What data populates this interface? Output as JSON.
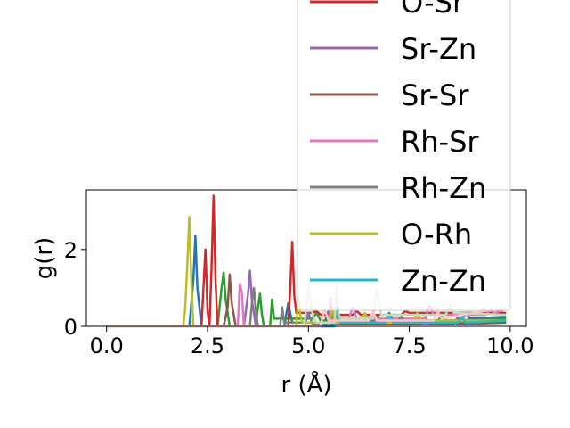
{
  "chart_data": {
    "type": "line",
    "xlabel": "r (Å)",
    "ylabel": "g(r)",
    "xlim": [
      -0.5,
      10.4
    ],
    "ylim": [
      0,
      3.55
    ],
    "xticks": [
      0.0,
      2.5,
      5.0,
      7.5,
      10.0
    ],
    "xtick_labels": [
      "0.0",
      "2.5",
      "5.0",
      "7.5",
      "10.0"
    ],
    "yticks": [
      0,
      2
    ],
    "ytick_labels": [
      "0",
      "2"
    ],
    "grid": false,
    "legend_position": "upper right, extending above the axes",
    "series": [
      {
        "color": "#1f77b4",
        "x": [
          0,
          2.05,
          2.15,
          2.2,
          2.25,
          2.35,
          4.4,
          4.5,
          4.6,
          5.4,
          5.5,
          5.6,
          6.9,
          7.0,
          7.1,
          8.8,
          8.9,
          9.0,
          9.9
        ],
        "values": [
          0,
          0,
          1.2,
          2.35,
          1.0,
          0,
          0,
          0.6,
          0.1,
          0.1,
          0.4,
          0.1,
          0.1,
          0.35,
          0.15,
          0.15,
          0.35,
          0.2,
          0.25
        ]
      },
      {
        "color": "#2ca02c",
        "x": [
          0,
          2.75,
          2.85,
          2.9,
          2.95,
          3.05,
          3.7,
          3.75,
          3.8,
          3.85,
          3.9,
          4.05,
          4.1,
          4.15,
          5.1,
          5.2,
          5.3,
          6.6,
          6.7,
          6.8,
          8.2,
          8.3,
          8.4,
          9.9
        ],
        "values": [
          0,
          0,
          1.0,
          1.4,
          0.7,
          0,
          0,
          0.5,
          0.85,
          0.3,
          0,
          0,
          0.7,
          0.2,
          0.2,
          0.35,
          0.15,
          0.15,
          0.25,
          0.15,
          0.15,
          0.25,
          0.15,
          0.2
        ]
      },
      {
        "color": "#d62728",
        "x": [
          0,
          2.35,
          2.45,
          2.5,
          2.55,
          2.6,
          2.65,
          2.7,
          2.75,
          4.5,
          4.55,
          4.6,
          4.65,
          4.7,
          5.1,
          5.2,
          5.3,
          6.1,
          6.2,
          6.3,
          7.3,
          7.4,
          7.5,
          9.9
        ],
        "values": [
          0,
          0,
          2.0,
          0.4,
          0,
          1.5,
          3.4,
          1.2,
          0,
          0,
          1.0,
          2.2,
          0.8,
          0.35,
          0.35,
          0.4,
          0.3,
          0.3,
          0.4,
          0.3,
          0.3,
          0.4,
          0.35,
          0.35
        ]
      },
      {
        "color": "#9467bd",
        "x": [
          0,
          3.4,
          3.5,
          3.55,
          3.6,
          3.7,
          4.9,
          5.0,
          5.1,
          6.5,
          6.6,
          6.7,
          8.6,
          8.7,
          8.8,
          9.9
        ],
        "values": [
          0,
          0,
          0.8,
          1.45,
          0.7,
          0,
          0,
          0.35,
          0.05,
          0.05,
          0.3,
          0.05,
          0.05,
          0.25,
          0.05,
          0.1
        ]
      },
      {
        "color": "#8c564b",
        "x": [
          0,
          2.9,
          3.0,
          3.05,
          3.1,
          3.2,
          5.6,
          5.7,
          5.8,
          7.8,
          7.9,
          8.0,
          9.9
        ],
        "values": [
          0,
          0,
          0.5,
          1.35,
          0.6,
          0,
          0,
          0.3,
          0.05,
          0.05,
          0.25,
          0.05,
          0.1
        ]
      },
      {
        "color": "#e377c2",
        "x": [
          0,
          3.25,
          3.3,
          3.35,
          3.4,
          5.5,
          5.55,
          5.6,
          6.0,
          6.1,
          6.2,
          7.9,
          8.0,
          8.1,
          9.4,
          9.5,
          9.6,
          9.9
        ],
        "values": [
          0,
          0,
          1.1,
          0.9,
          0,
          0,
          0.75,
          0.2,
          0.2,
          0.5,
          0.2,
          0.2,
          0.55,
          0.3,
          0.3,
          0.45,
          0.35,
          0.45
        ]
      },
      {
        "color": "#7f7f7f",
        "x": [
          0,
          3.55,
          3.6,
          3.65,
          3.7,
          3.75,
          4.3,
          4.35,
          4.4,
          5.5,
          5.6,
          5.7,
          7.2,
          7.3,
          7.4,
          9.9
        ],
        "values": [
          0,
          0,
          0.6,
          1.0,
          0.4,
          0,
          0,
          0.5,
          0.1,
          0.1,
          0.3,
          0.1,
          0.1,
          0.25,
          0.1,
          0.15
        ]
      },
      {
        "color": "#bcbd22",
        "x": [
          0,
          1.9,
          1.95,
          2.0,
          2.05,
          2.1,
          2.15,
          4.7,
          4.75,
          4.8,
          4.85,
          5.5,
          5.6,
          5.7,
          6.3,
          6.4,
          6.5,
          7.6,
          7.7,
          7.8,
          9.9
        ],
        "values": [
          0,
          0,
          0.5,
          1.6,
          2.85,
          1.2,
          0,
          0,
          0.8,
          0.3,
          0.1,
          0.1,
          0.4,
          0.1,
          0.1,
          0.35,
          0.1,
          0.1,
          0.35,
          0.15,
          0.15
        ]
      },
      {
        "color": "#17becf",
        "x": [
          0,
          5.65,
          5.7,
          5.75,
          5.8,
          6.9,
          7.0,
          7.1,
          8.7,
          8.8,
          8.9,
          9.9
        ],
        "values": [
          0,
          0,
          0.6,
          0.15,
          0.1,
          0.1,
          0.3,
          0.1,
          0.1,
          0.25,
          0.1,
          0.15
        ]
      },
      {
        "color": "#b7e0b7",
        "x": [
          0,
          4.9,
          5.0,
          5.1,
          5.2,
          5.65,
          5.7,
          5.75,
          5.8,
          6.6,
          6.7,
          6.8,
          8.4,
          8.5,
          8.6,
          9.9
        ],
        "values": [
          0,
          0,
          1.0,
          0.3,
          0.1,
          0.1,
          1.1,
          0.3,
          0.2,
          0.2,
          0.95,
          0.3,
          0.3,
          0.55,
          0.35,
          0.3
        ]
      },
      {
        "color": "#ffc4c4",
        "x": [
          0,
          5.3,
          5.4,
          5.5,
          6.5,
          6.6,
          6.7,
          8.1,
          8.2,
          8.3,
          9.9
        ],
        "values": [
          0,
          0,
          0.45,
          0.15,
          0.15,
          0.4,
          0.15,
          0.15,
          0.4,
          0.2,
          0.5
        ]
      }
    ],
    "legend": [
      {
        "label": "O-Sr",
        "color": "#d62728"
      },
      {
        "label": "Sr-Zn",
        "color": "#9467bd"
      },
      {
        "label": "Sr-Sr",
        "color": "#8c564b"
      },
      {
        "label": "Rh-Sr",
        "color": "#e377c2"
      },
      {
        "label": "Rh-Zn",
        "color": "#7f7f7f"
      },
      {
        "label": "O-Rh",
        "color": "#bcbd22"
      },
      {
        "label": "Zn-Zn",
        "color": "#17becf"
      }
    ]
  }
}
